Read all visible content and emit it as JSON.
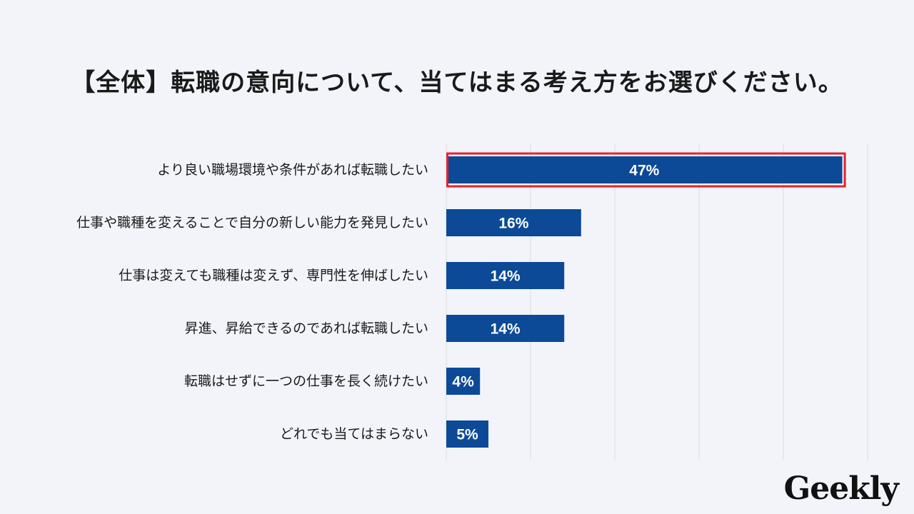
{
  "title": "【全体】転職の意向について、当てはまる考え方をお選びください。",
  "logo": "Geekly",
  "colors": {
    "background": "#f2f4f9",
    "bar": "#0c4a97",
    "highlight_border": "#e8212e",
    "grid": "#d9dbe0",
    "label_text": "#1a1a1a",
    "value_text": "#ffffff"
  },
  "chart_data": {
    "type": "bar",
    "orientation": "horizontal",
    "categories": [
      "より良い職場環境や条件があれば転職したい",
      "仕事や職種を変えることで自分の新しい能力を発見したい",
      "仕事は変えても職種は変えず、専門性を伸ばしたい",
      "昇進、昇給できるのであれば転職したい",
      "転職はせずに一つの仕事を長く続けたい",
      "どれでも当てはまらない"
    ],
    "values": [
      47,
      16,
      14,
      14,
      4,
      5
    ],
    "value_labels": [
      "47%",
      "16%",
      "14%",
      "14%",
      "4%",
      "5%"
    ],
    "unit": "%",
    "xlim": [
      0,
      50
    ],
    "gridlines": [
      0,
      10,
      20,
      30,
      40,
      50
    ],
    "grid": true,
    "highlighted_index": 0,
    "title": "【全体】転職の意向について、当てはまる考え方をお選びください。",
    "xlabel": "",
    "ylabel": ""
  }
}
